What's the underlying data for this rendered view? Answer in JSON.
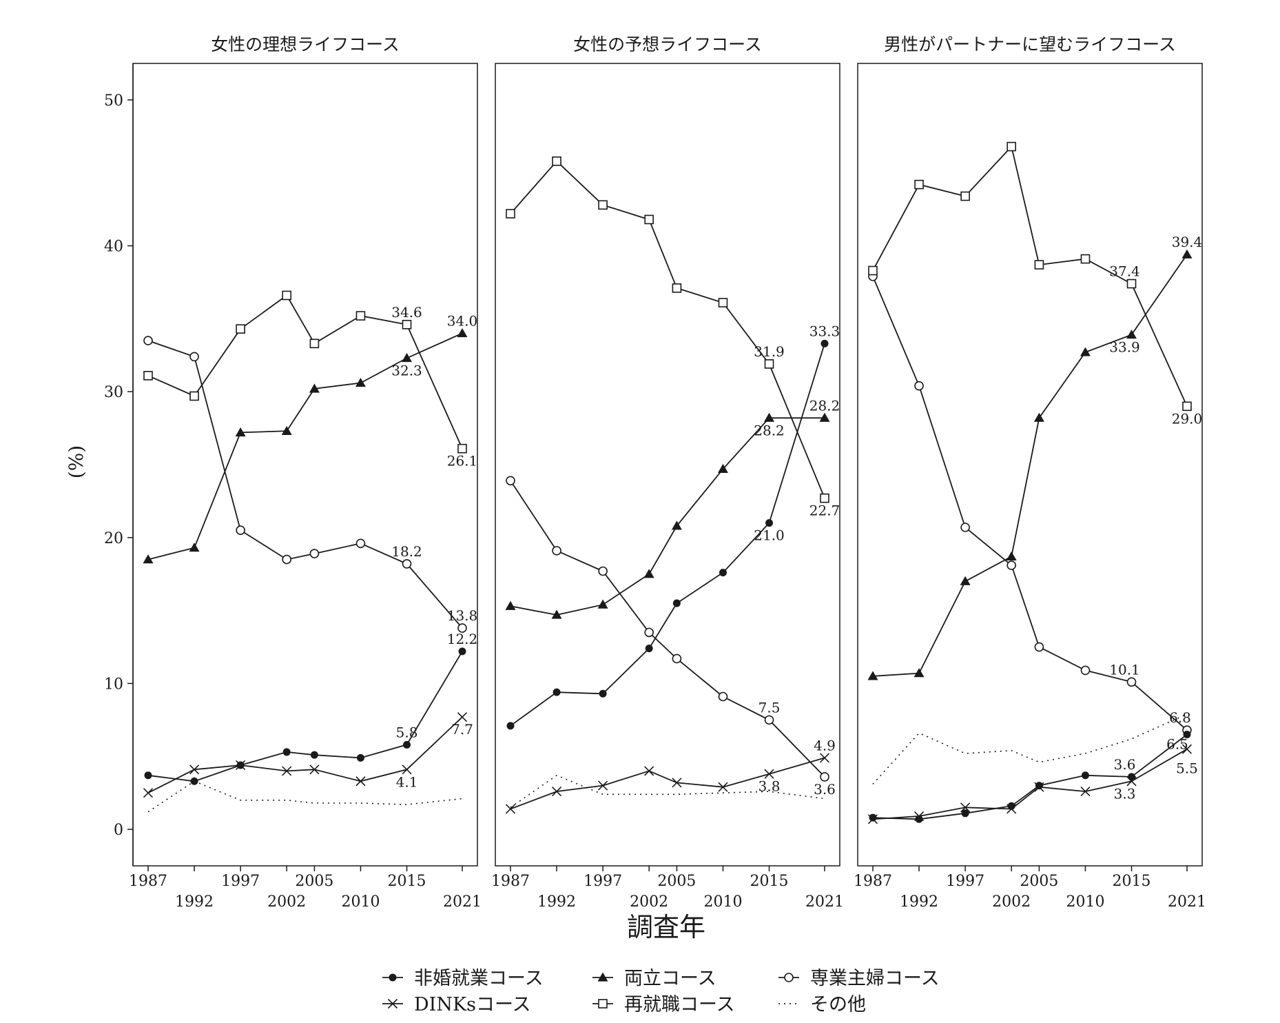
{
  "chart_data": {
    "type": "line",
    "xlabel": "調査年",
    "ylabel": "(%)",
    "ylim": [
      -2.5,
      52.5
    ],
    "yticks": [
      0,
      10,
      20,
      30,
      40,
      50
    ],
    "x": [
      1987,
      1992,
      1997,
      2002,
      2005,
      2010,
      2015,
      2021
    ],
    "xtick_labels": [
      "1987",
      "1992",
      "1997",
      "2002",
      "2005",
      "2010",
      "2015",
      "2021"
    ],
    "grid": false,
    "legend_position": "bottom",
    "legend": [
      {
        "key": "hikon",
        "label": "非婚就業コース",
        "marker": "filled-circle",
        "line": "solid"
      },
      {
        "key": "ryoritsu",
        "label": "両立コース",
        "marker": "filled-triangle",
        "line": "solid"
      },
      {
        "key": "sengyo",
        "label": "専業主婦コース",
        "marker": "open-circle",
        "line": "solid"
      },
      {
        "key": "dinks",
        "label": "DINKsコース",
        "marker": "x",
        "line": "solid"
      },
      {
        "key": "saishushoku",
        "label": "再就職コース",
        "marker": "open-square",
        "line": "solid"
      },
      {
        "key": "other",
        "label": "その他",
        "marker": "none",
        "line": "dotted"
      }
    ],
    "panels": [
      {
        "title": "女性の理想ライフコース",
        "series": {
          "hikon": [
            3.7,
            3.3,
            4.4,
            5.3,
            5.1,
            4.9,
            5.8,
            12.2
          ],
          "ryoritsu": [
            18.5,
            19.3,
            27.2,
            27.3,
            30.2,
            30.6,
            32.3,
            34.0
          ],
          "sengyo": [
            33.5,
            32.4,
            20.5,
            18.5,
            18.9,
            19.6,
            18.2,
            13.8
          ],
          "dinks": [
            2.5,
            4.1,
            4.4,
            4.0,
            4.1,
            3.3,
            4.1,
            7.7
          ],
          "saishushoku": [
            31.1,
            29.7,
            34.3,
            36.6,
            33.3,
            35.2,
            34.6,
            26.1
          ],
          "other": [
            1.2,
            3.3,
            2.0,
            2.0,
            1.8,
            1.8,
            1.7,
            2.1
          ]
        },
        "labels": [
          {
            "text": "34.6",
            "series": "saishushoku",
            "x": 2015,
            "dx": 0,
            "dy": -18
          },
          {
            "text": "34.0",
            "series": "ryoritsu",
            "x": 2021,
            "dx": 0,
            "dy": -18
          },
          {
            "text": "32.3",
            "series": "ryoritsu",
            "x": 2015,
            "dx": 0,
            "dy": 18
          },
          {
            "text": "26.1",
            "series": "saishushoku",
            "x": 2021,
            "dx": 0,
            "dy": 18
          },
          {
            "text": "18.2",
            "series": "sengyo",
            "x": 2015,
            "dx": 0,
            "dy": -18
          },
          {
            "text": "13.8",
            "series": "sengyo",
            "x": 2021,
            "dx": 0,
            "dy": -18
          },
          {
            "text": "12.2",
            "series": "hikon",
            "x": 2021,
            "dx": 0,
            "dy": -18
          },
          {
            "text": "5.8",
            "series": "hikon",
            "x": 2015,
            "dx": 0,
            "dy": -18
          },
          {
            "text": "7.7",
            "series": "dinks",
            "x": 2021,
            "dx": 0,
            "dy": 18
          },
          {
            "text": "4.1",
            "series": "dinks",
            "x": 2015,
            "dx": 0,
            "dy": 18
          }
        ]
      },
      {
        "title": "女性の予想ライフコース",
        "series": {
          "hikon": [
            7.1,
            9.4,
            9.3,
            12.4,
            15.5,
            17.6,
            21.0,
            33.3
          ],
          "ryoritsu": [
            15.3,
            14.7,
            15.4,
            17.5,
            20.8,
            24.7,
            28.2,
            28.2
          ],
          "sengyo": [
            23.9,
            19.1,
            17.7,
            13.5,
            11.7,
            9.1,
            7.5,
            3.6
          ],
          "dinks": [
            1.4,
            2.6,
            3.0,
            4.0,
            3.2,
            2.9,
            3.8,
            4.9
          ],
          "saishushoku": [
            42.2,
            45.8,
            42.8,
            41.8,
            37.1,
            36.1,
            31.9,
            22.7
          ],
          "other": [
            1.5,
            3.7,
            2.4,
            2.4,
            2.4,
            2.5,
            2.6,
            2.1
          ]
        },
        "labels": [
          {
            "text": "33.3",
            "series": "hikon",
            "x": 2021,
            "dx": 0,
            "dy": -18
          },
          {
            "text": "31.9",
            "series": "saishushoku",
            "x": 2015,
            "dx": 0,
            "dy": -18
          },
          {
            "text": "28.2",
            "series": "ryoritsu",
            "x": 2021,
            "dx": 0,
            "dy": -18
          },
          {
            "text": "28.2",
            "series": "ryoritsu",
            "x": 2015,
            "dx": 0,
            "dy": 18
          },
          {
            "text": "22.7",
            "series": "saishushoku",
            "x": 2021,
            "dx": 0,
            "dy": 18
          },
          {
            "text": "21.0",
            "series": "hikon",
            "x": 2015,
            "dx": 0,
            "dy": 18
          },
          {
            "text": "7.5",
            "series": "sengyo",
            "x": 2015,
            "dx": 0,
            "dy": -18
          },
          {
            "text": "4.9",
            "series": "dinks",
            "x": 2021,
            "dx": 0,
            "dy": -18
          },
          {
            "text": "3.8",
            "series": "dinks",
            "x": 2015,
            "dx": 0,
            "dy": 18
          },
          {
            "text": "3.6",
            "series": "sengyo",
            "x": 2021,
            "dx": 0,
            "dy": 18
          }
        ]
      },
      {
        "title": "男性がパートナーに望むライフコース",
        "series": {
          "hikon": [
            0.8,
            0.7,
            1.1,
            1.6,
            3.0,
            3.7,
            3.6,
            6.5
          ],
          "ryoritsu": [
            10.5,
            10.7,
            17.0,
            18.7,
            28.2,
            32.7,
            33.9,
            39.4
          ],
          "sengyo": [
            37.9,
            30.4,
            20.7,
            18.1,
            12.5,
            10.9,
            10.1,
            6.8
          ],
          "dinks": [
            0.7,
            0.9,
            1.5,
            1.4,
            2.9,
            2.6,
            3.3,
            5.5
          ],
          "saishushoku": [
            38.3,
            44.2,
            43.4,
            46.8,
            38.7,
            39.1,
            37.4,
            29.0
          ],
          "other": [
            3.1,
            6.6,
            5.2,
            5.4,
            4.6,
            5.2,
            6.2,
            7.9
          ]
        },
        "labels": [
          {
            "text": "39.4",
            "series": "ryoritsu",
            "x": 2021,
            "dx": 0,
            "dy": -18
          },
          {
            "text": "37.4",
            "series": "saishushoku",
            "x": 2015,
            "dx": -10,
            "dy": -18
          },
          {
            "text": "33.9",
            "series": "ryoritsu",
            "x": 2015,
            "dx": -10,
            "dy": 18
          },
          {
            "text": "29.0",
            "series": "saishushoku",
            "x": 2021,
            "dx": 0,
            "dy": 18
          },
          {
            "text": "10.1",
            "series": "sengyo",
            "x": 2015,
            "dx": -10,
            "dy": -18
          },
          {
            "text": "6.8",
            "series": "sengyo",
            "x": 2021,
            "dx": -10,
            "dy": -18
          },
          {
            "text": "6.5",
            "series": "hikon",
            "x": 2021,
            "dx": -14,
            "dy": 14
          },
          {
            "text": "5.5",
            "series": "dinks",
            "x": 2021,
            "dx": 0,
            "dy": 28
          },
          {
            "text": "3.6",
            "series": "hikon",
            "x": 2015,
            "dx": -10,
            "dy": -18
          },
          {
            "text": "3.3",
            "series": "dinks",
            "x": 2015,
            "dx": -10,
            "dy": 18
          }
        ]
      }
    ]
  }
}
